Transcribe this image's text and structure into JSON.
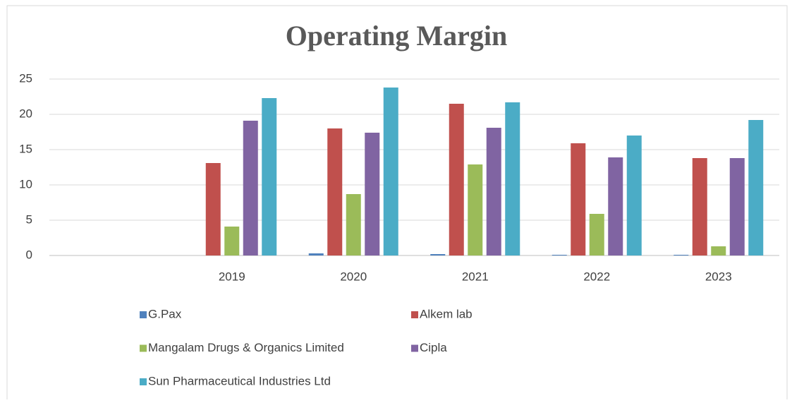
{
  "chart_data": {
    "type": "bar",
    "title": "Operating Margin",
    "categories": [
      null,
      "2019",
      "2020",
      "2021",
      "2022",
      "2023"
    ],
    "series": [
      {
        "name": "G.Pax",
        "color": "#4f81bd",
        "values": [
          null,
          0,
          0.3,
          0.2,
          0.1,
          0.1
        ]
      },
      {
        "name": "Alkem lab",
        "color": "#c0504d",
        "values": [
          null,
          13.1,
          18.0,
          21.5,
          15.9,
          13.8
        ]
      },
      {
        "name": "Mangalam Drugs & Organics Limited",
        "color": "#9bbb59",
        "values": [
          null,
          4.1,
          8.7,
          12.9,
          5.9,
          1.3
        ]
      },
      {
        "name": "Cipla",
        "color": "#8064a2",
        "values": [
          null,
          19.1,
          17.4,
          18.1,
          13.9,
          13.8
        ]
      },
      {
        "name": "Sun Pharmaceutical Industries Ltd",
        "color": "#4bacc6",
        "values": [
          null,
          22.3,
          23.8,
          21.7,
          17.0,
          19.2
        ]
      }
    ],
    "ylim": [
      0,
      25
    ],
    "yticks": [
      0,
      5,
      10,
      15,
      20,
      25
    ],
    "grid": true,
    "legend": "bottom"
  }
}
